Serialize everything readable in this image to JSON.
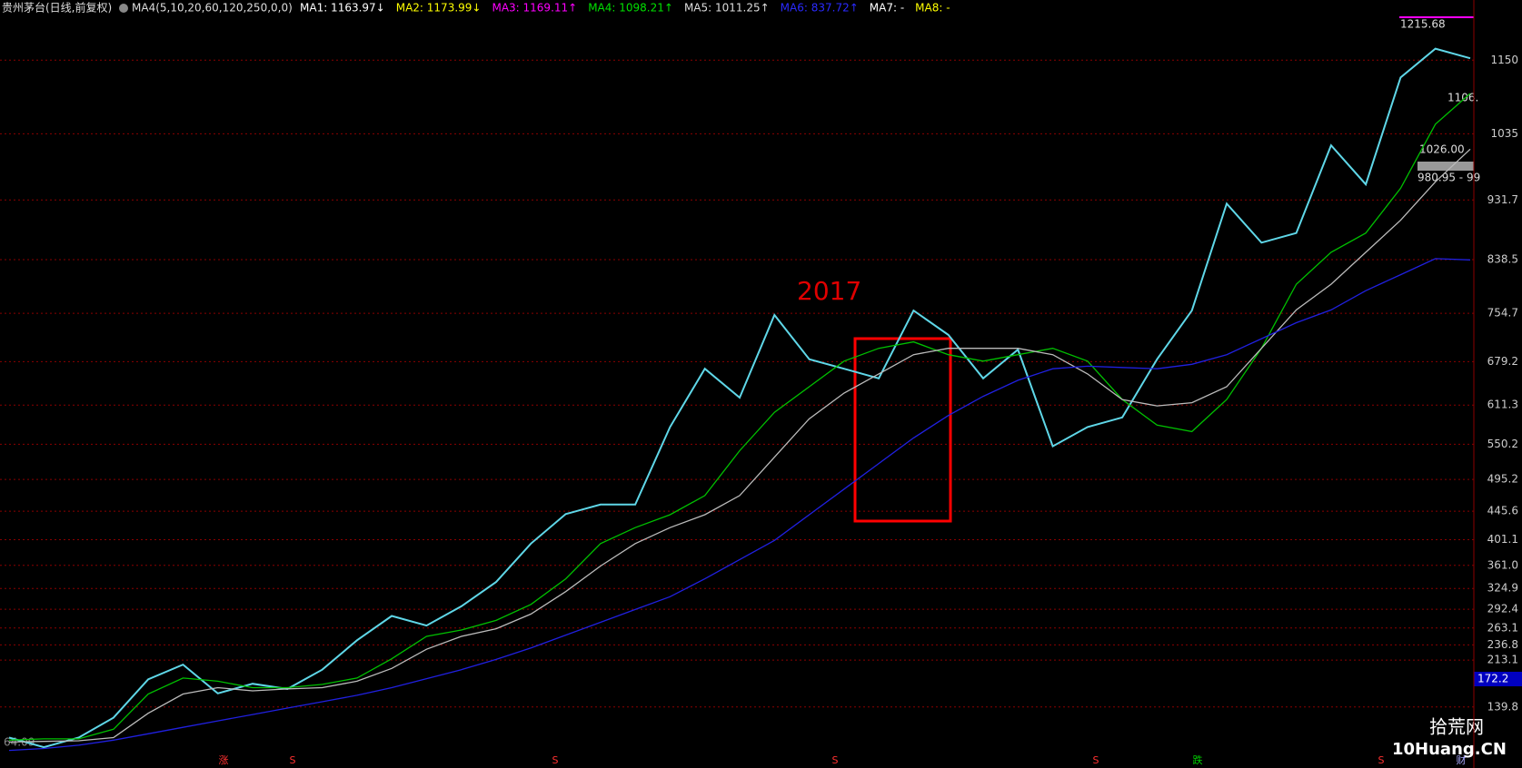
{
  "chart_data": {
    "type": "line",
    "title": "贵州茅台(日线,前复权)",
    "indicator": "MA4(5,10,20,60,120,250,0,0)",
    "ma_readouts": [
      {
        "text": "MA1: 1163.97↓",
        "color": "#ffffff"
      },
      {
        "text": "MA2: 1173.99↓",
        "color": "#ffff00"
      },
      {
        "text": "MA3: 1169.11↑",
        "color": "#ff00ff"
      },
      {
        "text": "MA4: 1098.21↑",
        "color": "#00e000"
      },
      {
        "text": "MA5: 1011.25↑",
        "color": "#dddddd"
      },
      {
        "text": "MA6: 837.72↑",
        "color": "#2a2aff"
      },
      {
        "text": "MA7: -",
        "color": "#ffffff"
      },
      {
        "text": "MA8: -",
        "color": "#ffff00"
      }
    ],
    "annotation": "2017",
    "price_labels": [
      "1215.68",
      "1106.",
      "1026.00",
      "980.95 - 99",
      "64.09"
    ],
    "price_marker": "172.2",
    "markers": [
      "涨",
      "S",
      "S",
      "S",
      "S",
      "跌",
      "S",
      "财"
    ],
    "watermark": [
      "拾荒网",
      "10Huang.CN"
    ],
    "ylim": [
      70,
      1244
    ],
    "yticks": [
      1150,
      1035,
      931.7,
      838.5,
      754.7,
      679.2,
      611.3,
      550.2,
      495.2,
      445.6,
      401.1,
      {
        "value": 361,
        "label": "361.0"
      },
      324.9,
      292.4,
      263.1,
      236.8,
      213.1,
      139.8
    ],
    "grid": true,
    "series": [
      {
        "name": "K",
        "color": "#5fd7e8",
        "values": [
          92,
          77,
          92,
          123,
          183,
          206,
          161,
          176,
          168,
          198,
          244,
          282,
          267,
          297,
          335,
          395,
          441,
          456,
          456,
          577,
          668,
          623,
          752,
          683,
          668,
          653,
          759,
          721,
          653,
          698,
          547,
          577,
          592,
          683,
          759,
          926,
          865,
          880,
          1017,
          956,
          1123,
          1168,
          1153
        ]
      },
      {
        "name": "MA4",
        "color": "#00c000",
        "values": [
          88,
          90,
          90,
          105,
          160,
          185,
          180,
          170,
          170,
          175,
          185,
          215,
          250,
          260,
          275,
          300,
          340,
          395,
          420,
          440,
          470,
          540,
          600,
          640,
          680,
          700,
          710,
          690,
          680,
          690,
          700,
          680,
          620,
          580,
          570,
          620,
          700,
          800,
          850,
          880,
          950,
          1050,
          1098
        ]
      },
      {
        "name": "MA5",
        "color": "#bbbbbb",
        "values": [
          85,
          86,
          87,
          92,
          130,
          160,
          170,
          165,
          168,
          170,
          180,
          200,
          230,
          250,
          262,
          285,
          320,
          360,
          395,
          420,
          440,
          470,
          530,
          590,
          630,
          660,
          690,
          700,
          700,
          700,
          690,
          660,
          620,
          610,
          615,
          640,
          700,
          760,
          800,
          850,
          900,
          960,
          1011
        ]
      },
      {
        "name": "MA6",
        "color": "#2020e0",
        "values": [
          72,
          75,
          80,
          88,
          98,
          108,
          118,
          128,
          138,
          148,
          158,
          170,
          184,
          198,
          214,
          232,
          252,
          272,
          292,
          312,
          340,
          370,
          400,
          440,
          480,
          520,
          560,
          595,
          625,
          650,
          668,
          672,
          670,
          668,
          675,
          690,
          715,
          740,
          760,
          790,
          815,
          840,
          838
        ]
      }
    ]
  }
}
